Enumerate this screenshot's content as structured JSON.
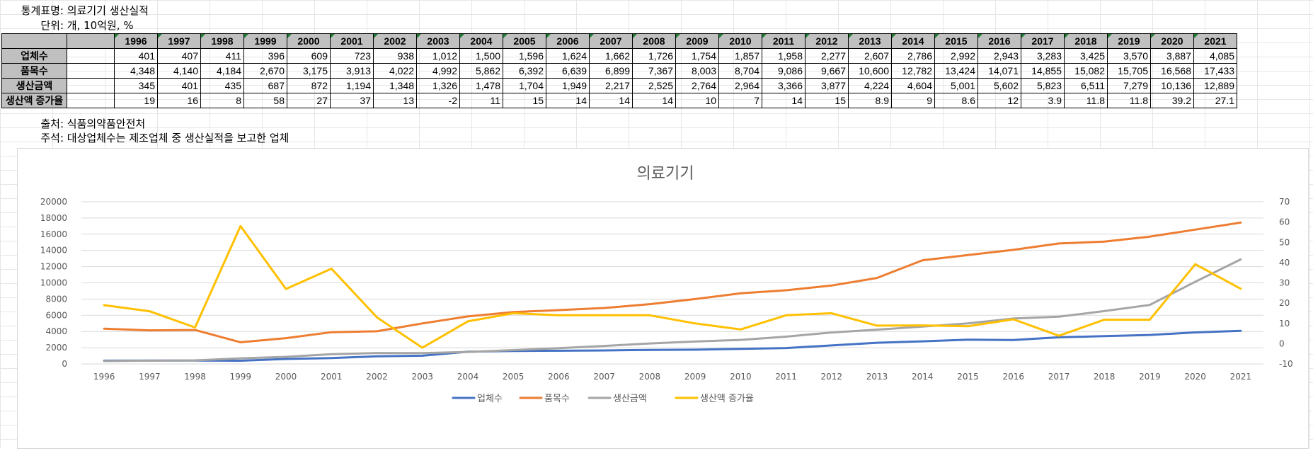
{
  "meta": {
    "title_key": "통계표명:",
    "title_value": "의료기기 생산실적",
    "unit_key": "단위:",
    "unit_value": "개, 10억원, %",
    "source_key": "출처:",
    "source_value": "식품의약품안전처",
    "note_key": "주석:",
    "note_value": "대상업체수는 제조업체 중 생산실적을 보고한 업체"
  },
  "table": {
    "years": [
      "1996",
      "1997",
      "1998",
      "1999",
      "2000",
      "2001",
      "2002",
      "2003",
      "2004",
      "2005",
      "2006",
      "2007",
      "2008",
      "2009",
      "2010",
      "2011",
      "2012",
      "2013",
      "2014",
      "2015",
      "2016",
      "2017",
      "2018",
      "2019",
      "2020",
      "2021"
    ],
    "rows": [
      {
        "label": "업체수",
        "values": [
          "401",
          "407",
          "411",
          "396",
          "609",
          "723",
          "938",
          "1,012",
          "1,500",
          "1,596",
          "1,624",
          "1,662",
          "1,726",
          "1,754",
          "1,857",
          "1,958",
          "2,277",
          "2,607",
          "2,786",
          "2,992",
          "2,943",
          "3,283",
          "3,425",
          "3,570",
          "3,887",
          "4,085"
        ]
      },
      {
        "label": "품목수",
        "values": [
          "4,348",
          "4,140",
          "4,184",
          "2,670",
          "3,175",
          "3,913",
          "4,022",
          "4,992",
          "5,862",
          "6,392",
          "6,639",
          "6,899",
          "7,367",
          "8,003",
          "8,704",
          "9,086",
          "9,667",
          "10,600",
          "12,782",
          "13,424",
          "14,071",
          "14,855",
          "15,082",
          "15,705",
          "16,568",
          "17,433"
        ]
      },
      {
        "label": "생산금액",
        "values": [
          "345",
          "401",
          "435",
          "687",
          "872",
          "1,194",
          "1,348",
          "1,326",
          "1,478",
          "1,704",
          "1,949",
          "2,217",
          "2,525",
          "2,764",
          "2,964",
          "3,366",
          "3,877",
          "4,224",
          "4,604",
          "5,001",
          "5,602",
          "5,823",
          "6,511",
          "7,279",
          "10,136",
          "12,889"
        ]
      },
      {
        "label": "생산액 증가율",
        "values": [
          "19",
          "16",
          "8",
          "58",
          "27",
          "37",
          "13",
          "-2",
          "11",
          "15",
          "14",
          "14",
          "14",
          "10",
          "7",
          "14",
          "15",
          "8.9",
          "9",
          "8.6",
          "12",
          "3.9",
          "11.8",
          "11.8",
          "39.2",
          "27.1"
        ]
      }
    ]
  },
  "chart_data": {
    "type": "line",
    "title": "의료기기",
    "x": [
      "1996",
      "1997",
      "1998",
      "1999",
      "2000",
      "2001",
      "2002",
      "2003",
      "2004",
      "2005",
      "2006",
      "2007",
      "2008",
      "2009",
      "2010",
      "2011",
      "2012",
      "2013",
      "2014",
      "2015",
      "2016",
      "2017",
      "2018",
      "2019",
      "2020",
      "2021"
    ],
    "y_left": {
      "min": 0,
      "max": 20000,
      "step": 2000,
      "ticks": [
        "0",
        "2000",
        "4000",
        "6000",
        "8000",
        "10000",
        "12000",
        "14000",
        "16000",
        "18000",
        "20000"
      ]
    },
    "y_right": {
      "min": -10,
      "max": 70,
      "step": 10,
      "ticks": [
        "-10",
        "0",
        "10",
        "20",
        "30",
        "40",
        "50",
        "60",
        "70"
      ]
    },
    "grid": true,
    "legend_position": "bottom",
    "series": [
      {
        "name": "업체수",
        "axis": "left",
        "color": "#4472c4",
        "values": [
          401,
          407,
          411,
          396,
          609,
          723,
          938,
          1012,
          1500,
          1596,
          1624,
          1662,
          1726,
          1754,
          1857,
          1958,
          2277,
          2607,
          2786,
          2992,
          2943,
          3283,
          3425,
          3570,
          3887,
          4085
        ]
      },
      {
        "name": "품목수",
        "axis": "left",
        "color": "#ed7d31",
        "values": [
          4348,
          4140,
          4184,
          2670,
          3175,
          3913,
          4022,
          4992,
          5862,
          6392,
          6639,
          6899,
          7367,
          8003,
          8704,
          9086,
          9667,
          10600,
          12782,
          13424,
          14071,
          14855,
          15082,
          15705,
          16568,
          17433
        ]
      },
      {
        "name": "생산금액",
        "axis": "left",
        "color": "#a5a5a5",
        "values": [
          345,
          401,
          435,
          687,
          872,
          1194,
          1348,
          1326,
          1478,
          1704,
          1949,
          2217,
          2525,
          2764,
          2964,
          3366,
          3877,
          4224,
          4604,
          5001,
          5602,
          5823,
          6511,
          7279,
          10136,
          12889
        ]
      },
      {
        "name": "생산액 증가율",
        "axis": "right",
        "color": "#ffc000",
        "values": [
          19,
          16,
          8,
          58,
          27,
          37,
          13,
          -2,
          11,
          15,
          14,
          14,
          14,
          10,
          7,
          14,
          15,
          8.9,
          9,
          8.6,
          12,
          3.9,
          11.8,
          11.8,
          39.2,
          27.1
        ]
      }
    ]
  }
}
